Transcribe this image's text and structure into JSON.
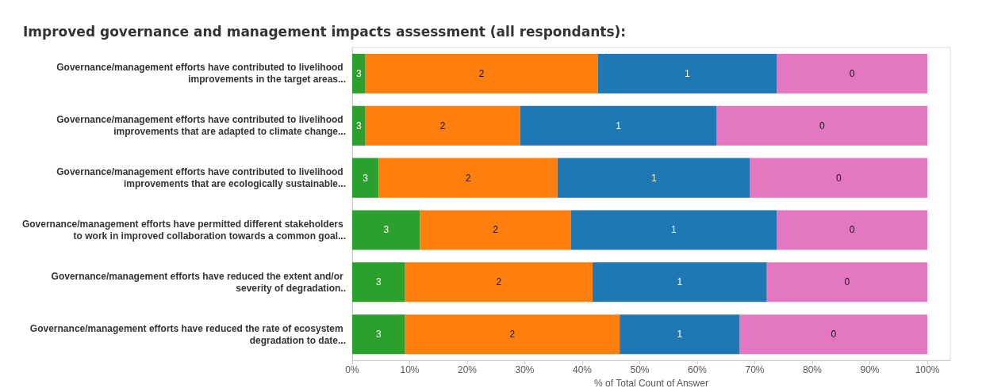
{
  "chart_data": {
    "type": "bar",
    "orientation": "horizontal",
    "stacked": true,
    "title": "Improved governance and management impacts assessment (all respondants):",
    "xlabel": "% of Total Count of Answer",
    "categories": [
      "Governance/management efforts have contributed to livelihood improvements in the target areas...",
      "Governance/management efforts have contributed to livelihood improvements that are adapted to climate change...",
      "Governance/management efforts have contributed to livelihood improvements that are ecologically sustainable...",
      "Governance/management efforts have permitted different stakeholders to work in improved collaboration towards a common goal...",
      "Governance/management efforts have reduced the extent and/or severity of degradation..",
      "Governance/management efforts have reduced the rate of ecosystem degradation to date..."
    ],
    "series": [
      {
        "name": "3",
        "color": "#2ca02c",
        "values": [
          2.3,
          2.3,
          4.6,
          11.8,
          9.2,
          9.2
        ]
      },
      {
        "name": "2",
        "color": "#ff7f0e",
        "values": [
          40.4,
          26.9,
          31.1,
          26.2,
          32.6,
          37.3
        ]
      },
      {
        "name": "1",
        "color": "#1f77b4",
        "values": [
          31.1,
          34.2,
          33.5,
          35.8,
          30.3,
          20.9
        ]
      },
      {
        "name": "0",
        "color": "#e377c2",
        "values": [
          26.2,
          36.6,
          30.8,
          26.2,
          27.9,
          32.6
        ]
      }
    ],
    "xlim": [
      0,
      104
    ],
    "xticks": [
      {
        "value": 0,
        "label": "0%"
      },
      {
        "value": 10,
        "label": "10%"
      },
      {
        "value": 20,
        "label": "20%"
      },
      {
        "value": 30,
        "label": "30%"
      },
      {
        "value": 40,
        "label": "40%"
      },
      {
        "value": 50,
        "label": "50%"
      },
      {
        "value": 60,
        "label": "60%"
      },
      {
        "value": 70,
        "label": "70%"
      },
      {
        "value": 80,
        "label": "80%"
      },
      {
        "value": 90,
        "label": "90%"
      },
      {
        "value": 100,
        "label": "100%"
      }
    ],
    "grid": false,
    "legend": false
  }
}
